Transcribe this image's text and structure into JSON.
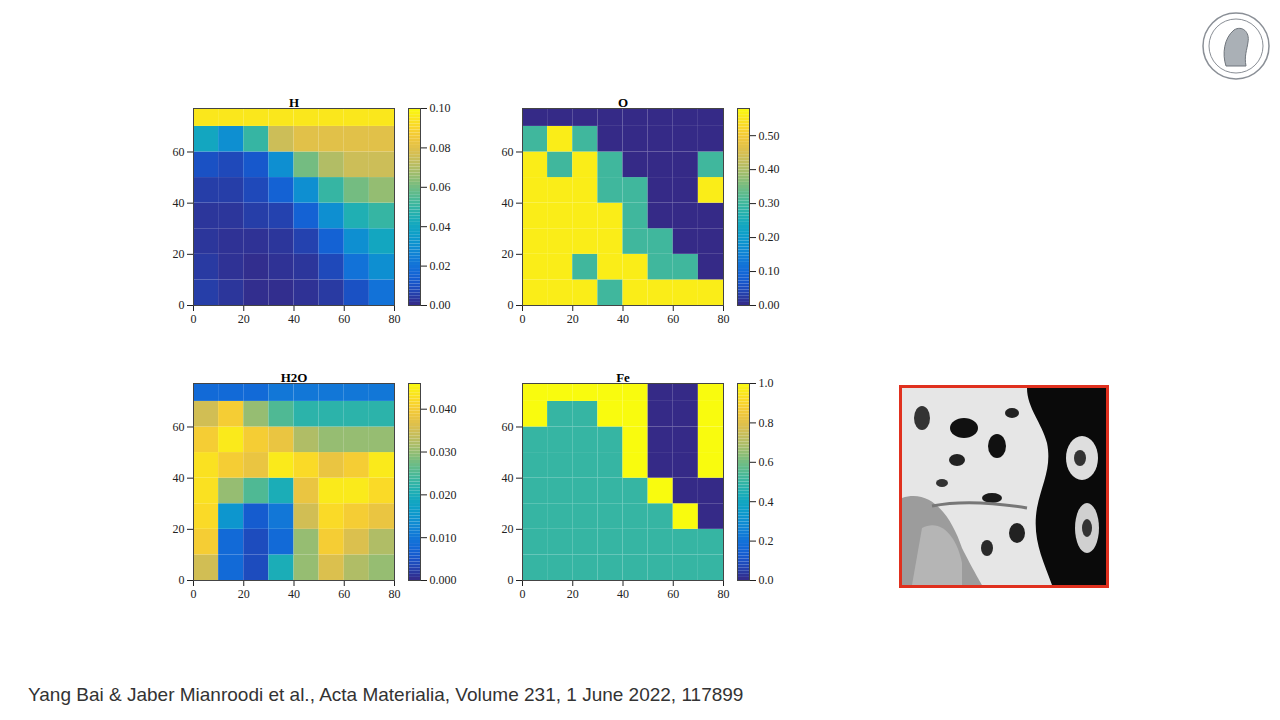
{
  "chart_data": [
    {
      "type": "heatmap",
      "title": "H",
      "xlim": [
        0,
        80
      ],
      "ylim": [
        0,
        77
      ],
      "xticks": [
        0,
        20,
        40,
        60,
        80
      ],
      "yticks": [
        0,
        20,
        40,
        60
      ],
      "x_bins": [
        0,
        10,
        20,
        30,
        40,
        50,
        60,
        70,
        80
      ],
      "y_bins": [
        0,
        10,
        20,
        30,
        40,
        50,
        60,
        70,
        77
      ],
      "cells": [
        [
          0.005,
          0.003,
          0.001,
          0.001,
          0.002,
          0.004,
          0.01,
          0.02
        ],
        [
          0.004,
          0.002,
          0.001,
          0.002,
          0.003,
          0.008,
          0.02,
          0.03
        ],
        [
          0.003,
          0.002,
          0.002,
          0.003,
          0.006,
          0.015,
          0.03,
          0.04
        ],
        [
          0.003,
          0.003,
          0.005,
          0.006,
          0.015,
          0.03,
          0.045,
          0.05
        ],
        [
          0.005,
          0.005,
          0.008,
          0.015,
          0.03,
          0.05,
          0.06,
          0.065
        ],
        [
          0.01,
          0.008,
          0.012,
          0.03,
          0.06,
          0.07,
          0.075,
          0.075
        ],
        [
          0.04,
          0.03,
          0.05,
          0.075,
          0.08,
          0.08,
          0.08,
          0.08
        ],
        [
          0.095,
          0.095,
          0.095,
          0.095,
          0.095,
          0.095,
          0.095,
          0.095
        ]
      ],
      "colorbar": {
        "range": [
          0,
          0.1
        ],
        "ticks": [
          0,
          0.02,
          0.04,
          0.06,
          0.08,
          0.1
        ]
      }
    },
    {
      "type": "heatmap",
      "title": "O",
      "xlim": [
        0,
        80
      ],
      "ylim": [
        0,
        77
      ],
      "xticks": [
        0,
        20,
        40,
        60,
        80
      ],
      "yticks": [
        0,
        20,
        40,
        60
      ],
      "x_bins": [
        0,
        10,
        20,
        30,
        40,
        50,
        60,
        70,
        80
      ],
      "y_bins": [
        0,
        10,
        20,
        30,
        40,
        50,
        60,
        70,
        77
      ],
      "cells": [
        [
          0.56,
          0.56,
          0.56,
          0.3,
          0.56,
          0.56,
          0.56,
          0.56
        ],
        [
          0.56,
          0.56,
          0.3,
          0.56,
          0.56,
          0.3,
          0.3,
          0
        ],
        [
          0.56,
          0.56,
          0.56,
          0.56,
          0.3,
          0.3,
          0,
          0
        ],
        [
          0.56,
          0.56,
          0.56,
          0.56,
          0.3,
          0,
          0,
          0
        ],
        [
          0.56,
          0.56,
          0.56,
          0.3,
          0.3,
          0,
          0,
          0.56
        ],
        [
          0.56,
          0.3,
          0.56,
          0.3,
          0,
          0,
          0,
          0.3
        ],
        [
          0.3,
          0.56,
          0.3,
          0,
          0,
          0,
          0,
          0
        ],
        [
          0,
          0,
          0,
          0,
          0,
          0,
          0,
          0
        ]
      ],
      "colorbar": {
        "range": [
          0,
          0.58
        ],
        "ticks": [
          0,
          0.1,
          0.2,
          0.3,
          0.4,
          0.5
        ]
      }
    },
    {
      "type": "heatmap",
      "title": "H2O",
      "xlim": [
        0,
        80
      ],
      "ylim": [
        0,
        77
      ],
      "xticks": [
        0,
        20,
        40,
        60,
        80
      ],
      "yticks": [
        0,
        20,
        40,
        60
      ],
      "x_bins": [
        0,
        10,
        20,
        30,
        40,
        50,
        60,
        70,
        80
      ],
      "y_bins": [
        0,
        10,
        20,
        30,
        40,
        50,
        60,
        70,
        77
      ],
      "cells": [
        [
          0.035,
          0.008,
          0.004,
          0.02,
          0.03,
          0.036,
          0.032,
          0.03
        ],
        [
          0.04,
          0.008,
          0.004,
          0.008,
          0.03,
          0.04,
          0.036,
          0.032
        ],
        [
          0.042,
          0.015,
          0.006,
          0.01,
          0.035,
          0.042,
          0.04,
          0.038
        ],
        [
          0.043,
          0.03,
          0.025,
          0.02,
          0.038,
          0.044,
          0.044,
          0.042
        ],
        [
          0.043,
          0.04,
          0.038,
          0.044,
          0.042,
          0.038,
          0.04,
          0.044
        ],
        [
          0.04,
          0.044,
          0.04,
          0.038,
          0.032,
          0.03,
          0.03,
          0.03
        ],
        [
          0.035,
          0.04,
          0.03,
          0.025,
          0.022,
          0.022,
          0.022,
          0.022
        ],
        [
          0.008,
          0.008,
          0.008,
          0.01,
          0.01,
          0.01,
          0.01,
          0.01
        ]
      ],
      "colorbar": {
        "range": [
          0,
          0.046
        ],
        "ticks": [
          0,
          0.01,
          0.02,
          0.03,
          0.04
        ]
      }
    },
    {
      "type": "heatmap",
      "title": "Fe",
      "xlim": [
        0,
        80
      ],
      "ylim": [
        0,
        77
      ],
      "xticks": [
        0,
        20,
        40,
        60,
        80
      ],
      "yticks": [
        0,
        20,
        40,
        60
      ],
      "x_bins": [
        0,
        10,
        20,
        30,
        40,
        50,
        60,
        70,
        80
      ],
      "y_bins": [
        0,
        10,
        20,
        30,
        40,
        50,
        60,
        70,
        77
      ],
      "cells": [
        [
          0.5,
          0.5,
          0.5,
          0.5,
          0.5,
          0.5,
          0.5,
          0.5
        ],
        [
          0.5,
          0.5,
          0.5,
          0.5,
          0.5,
          0.5,
          0.5,
          0.5
        ],
        [
          0.5,
          0.5,
          0.5,
          0.5,
          0.5,
          0.5,
          1,
          0
        ],
        [
          0.5,
          0.5,
          0.5,
          0.5,
          0.5,
          1,
          0,
          0
        ],
        [
          0.5,
          0.5,
          0.5,
          0.5,
          1,
          0,
          0,
          1
        ],
        [
          0.5,
          0.5,
          0.5,
          0.5,
          1,
          0,
          0,
          1
        ],
        [
          1,
          0.5,
          0.5,
          1,
          1,
          0,
          0,
          1
        ],
        [
          1,
          1,
          1,
          1,
          1,
          0,
          0,
          1
        ]
      ],
      "colorbar": {
        "range": [
          0,
          1
        ],
        "ticks": [
          0,
          0.2,
          0.4,
          0.6,
          0.8,
          1
        ]
      }
    }
  ],
  "caption": "Yang Bai & Jaber Mianroodi et al., Acta Materialia, Volume 231, 1 June 2022, 117899"
}
